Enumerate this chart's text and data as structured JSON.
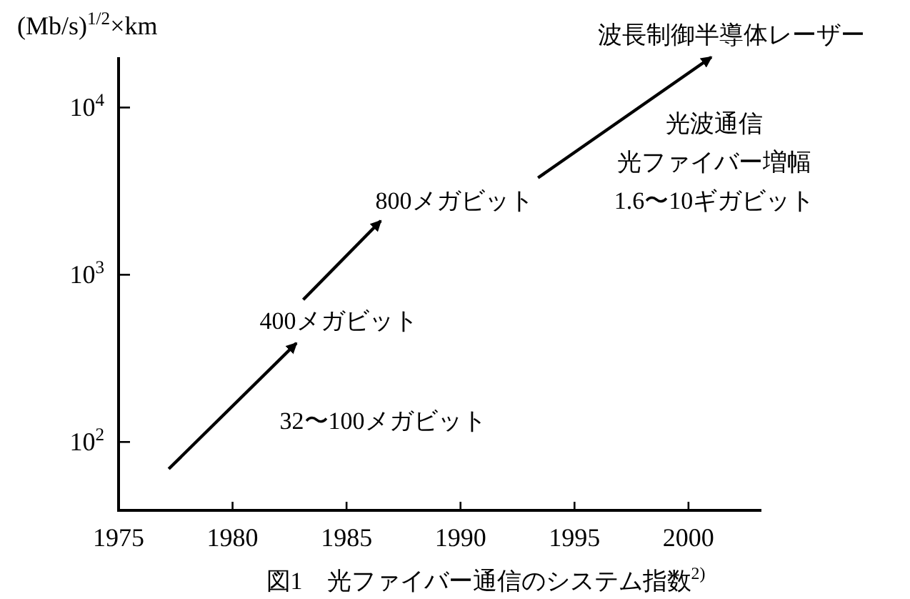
{
  "chart_data": {
    "type": "line",
    "ylabel": "(Mb/s)$^{1/2}$×km",
    "xlim": [
      1975,
      2003.2
    ],
    "xticks": [
      1975,
      1980,
      1985,
      1990,
      1995,
      2000
    ],
    "ylim": [
      39,
      20000
    ],
    "log": "y",
    "yticks": [
      {
        "value": 100,
        "label": "10$^{2}$"
      },
      {
        "value": 1000,
        "label": "10$^{3}$"
      },
      {
        "value": 10000,
        "label": "10$^{4}$"
      }
    ],
    "grid": false,
    "marker": "none",
    "line_style": "solid",
    "series": [
      {
        "color": "#000000",
        "x": [
          1977.2,
          1982.8
        ],
        "values": [
          69,
          390
        ]
      },
      {
        "color": "#000000",
        "x": [
          1983.1,
          1986.5
        ],
        "values": [
          710,
          2100
        ]
      },
      {
        "color": "#000000",
        "x": [
          1993.4,
          2001.0
        ],
        "values": [
          3800,
          20000
        ]
      }
    ],
    "annotations": [
      "32〜100メガビット",
      "400メガビット",
      "800メガビット",
      "光波通信",
      "光ファイバー増幅",
      "1.6〜10ギガビット",
      "波長制御半導体レーザー",
      "図1　光ファイバー通信のシステム指数$^{2)}$"
    ]
  }
}
